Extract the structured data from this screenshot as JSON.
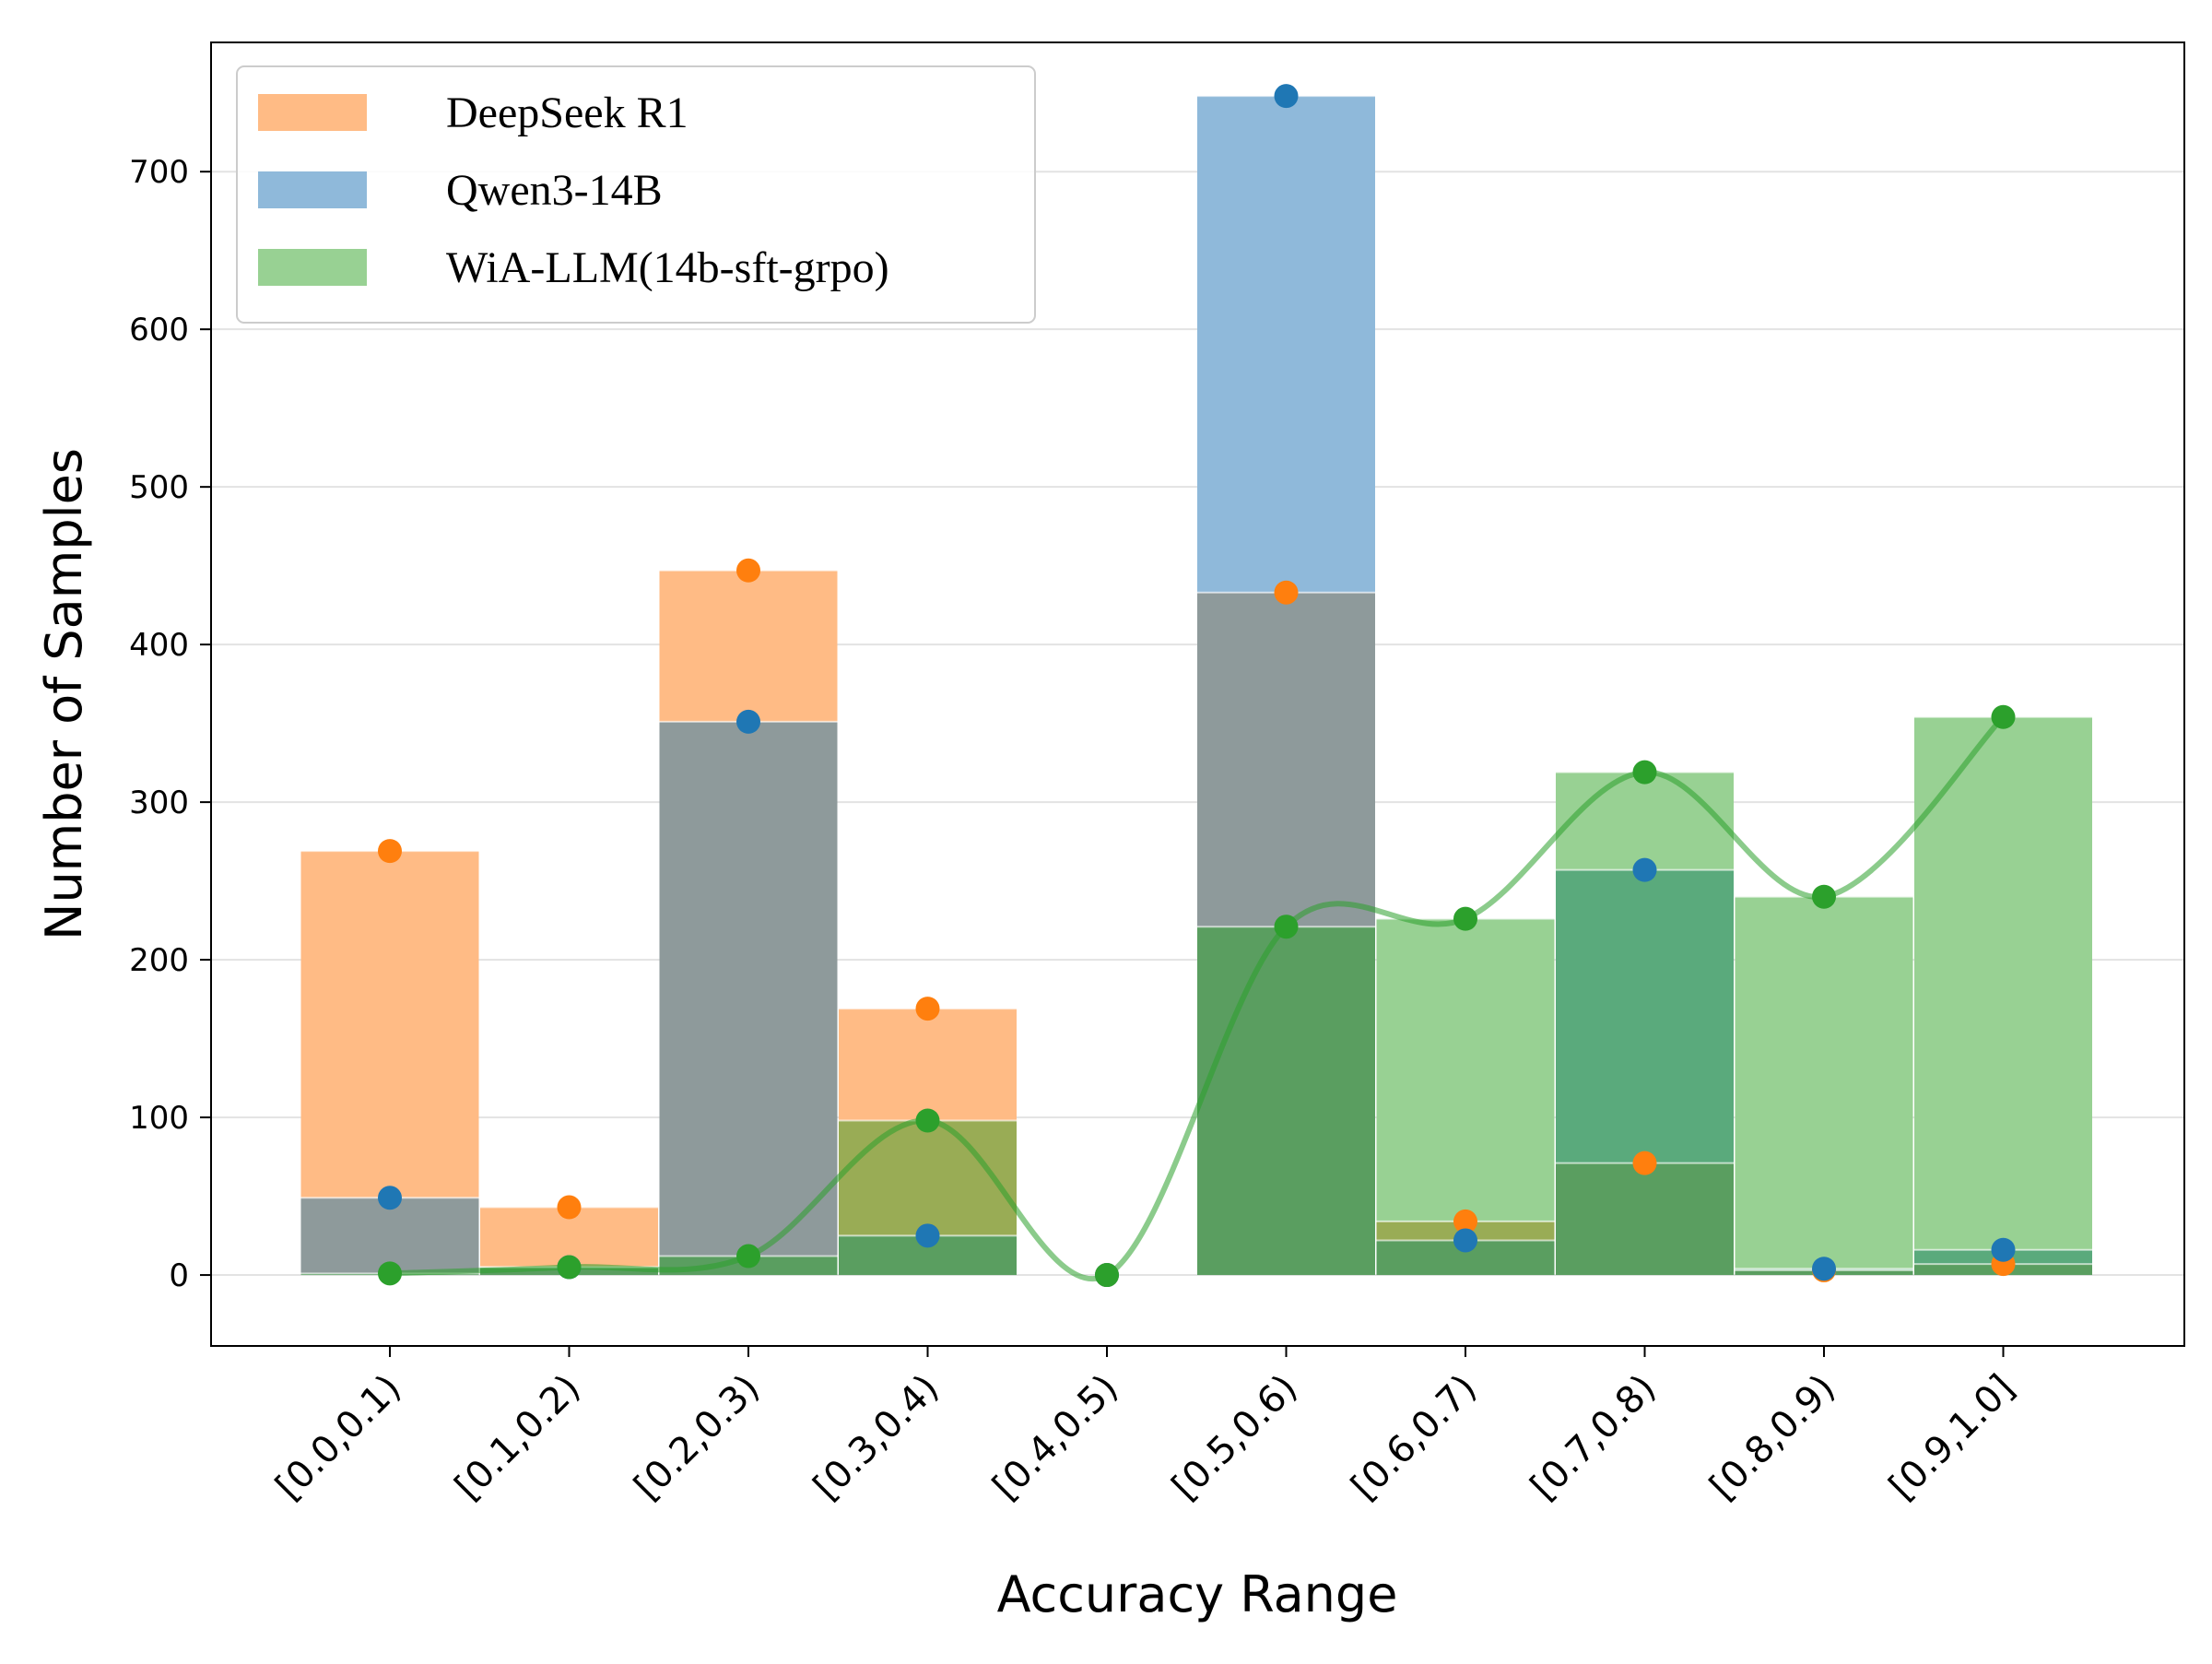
{
  "chart_data": {
    "type": "bar",
    "title": "",
    "xlabel": "Accuracy Range",
    "ylabel": "Number of Samples",
    "ylim": [
      -45,
      782
    ],
    "yticks": [
      0,
      100,
      200,
      300,
      400,
      500,
      600,
      700
    ],
    "grid": "horizontal",
    "legend_position": "top-left",
    "categories": [
      "[0.0,0.1)",
      "[0.1,0.2)",
      "[0.2,0.3)",
      "[0.3,0.4)",
      "[0.4,0.5)",
      "[0.5,0.6)",
      "[0.6,0.7)",
      "[0.7,0.8)",
      "[0.8,0.9)",
      "[0.9,1.0]"
    ],
    "series": [
      {
        "name": "DeepSeek R1",
        "bar_color": "#ffbb85",
        "dot_color": "#ff7f0e",
        "values": [
          269,
          43,
          447,
          169,
          0,
          433,
          34,
          71,
          3,
          7
        ]
      },
      {
        "name": "Qwen3-14B",
        "bar_color": "#8fb9da",
        "dot_color": "#1f77b4",
        "values": [
          49,
          5,
          351,
          25,
          0,
          748,
          22,
          257,
          4,
          16
        ]
      },
      {
        "name": "WiA-LLM(14b-sft-grpo)",
        "bar_color": "#98d193",
        "dot_color": "#2ca02c",
        "values": [
          1,
          5,
          12,
          98,
          0,
          221,
          226,
          319,
          240,
          354
        ]
      }
    ],
    "overlap_colors": {
      "DeepSeek R1+Qwen3-14B": "#8e9a9b",
      "DeepSeek R1+WiA-LLM(14b-sft-grpo)": "#99ac55",
      "Qwen3-14B+WiA-LLM(14b-sft-grpo)": "#5aaa7c",
      "all": "#5a9e60"
    },
    "trend_line": {
      "series": "WiA-LLM(14b-sft-grpo)",
      "color": "#2ca02c",
      "smoothed": true
    }
  }
}
